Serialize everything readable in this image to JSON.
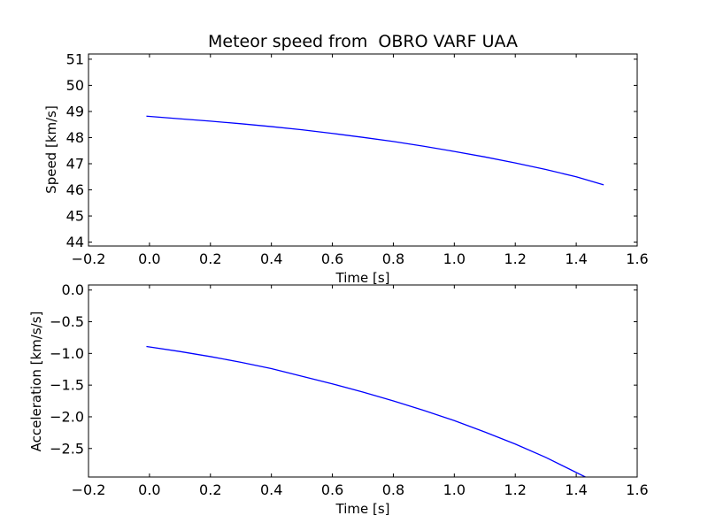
{
  "chart_data": [
    {
      "type": "line",
      "title": "Meteor speed from  OBRO VARF UAA",
      "xlabel": "Time [s]",
      "ylabel": "Speed [km/s]",
      "xlim": [
        -0.2,
        1.6
      ],
      "ylim": [
        43.85,
        51.2
      ],
      "xticks": [
        -0.2,
        0.0,
        0.2,
        0.4,
        0.6,
        0.8,
        1.0,
        1.2,
        1.4,
        1.6
      ],
      "xtick_labels": [
        "−0.2",
        "0.0",
        "0.2",
        "0.4",
        "0.6",
        "0.8",
        "1.0",
        "1.2",
        "1.4",
        "1.6"
      ],
      "yticks": [
        44,
        45,
        46,
        47,
        48,
        49,
        50,
        51
      ],
      "ytick_labels": [
        "44",
        "45",
        "46",
        "47",
        "48",
        "49",
        "50",
        "51"
      ],
      "grid": false,
      "series": [
        {
          "color": "#0000ff",
          "x": [
            -0.01,
            0.1,
            0.2,
            0.3,
            0.4,
            0.5,
            0.6,
            0.7,
            0.8,
            0.9,
            1.0,
            1.1,
            1.2,
            1.3,
            1.4,
            1.49
          ],
          "y": [
            48.82,
            48.72,
            48.63,
            48.53,
            48.42,
            48.3,
            48.16,
            48.01,
            47.85,
            47.67,
            47.47,
            47.26,
            47.03,
            46.78,
            46.5,
            46.19
          ]
        }
      ]
    },
    {
      "type": "line",
      "title": "",
      "xlabel": "Time [s]",
      "ylabel": "Acceleration [km/s/s]",
      "xlim": [
        -0.2,
        1.6
      ],
      "ylim": [
        -2.95,
        0.08
      ],
      "xticks": [
        -0.2,
        0.0,
        0.2,
        0.4,
        0.6,
        0.8,
        1.0,
        1.2,
        1.4,
        1.6
      ],
      "xtick_labels": [
        "−0.2",
        "0.0",
        "0.2",
        "0.4",
        "0.6",
        "0.8",
        "1.0",
        "1.2",
        "1.4",
        "1.6"
      ],
      "yticks": [
        0.0,
        -0.5,
        -1.0,
        -1.5,
        -2.0,
        -2.5
      ],
      "ytick_labels": [
        "0.0",
        "−0.5",
        "−1.0",
        "−1.5",
        "−2.0",
        "−2.5"
      ],
      "grid": false,
      "series": [
        {
          "color": "#0000ff",
          "x": [
            -0.01,
            0.1,
            0.2,
            0.3,
            0.4,
            0.5,
            0.6,
            0.7,
            0.8,
            0.9,
            1.0,
            1.1,
            1.2,
            1.3,
            1.43
          ],
          "y": [
            -0.89,
            -0.97,
            -1.05,
            -1.14,
            -1.24,
            -1.36,
            -1.48,
            -1.61,
            -1.75,
            -1.9,
            -2.06,
            -2.24,
            -2.43,
            -2.64,
            -2.95
          ]
        }
      ]
    }
  ]
}
